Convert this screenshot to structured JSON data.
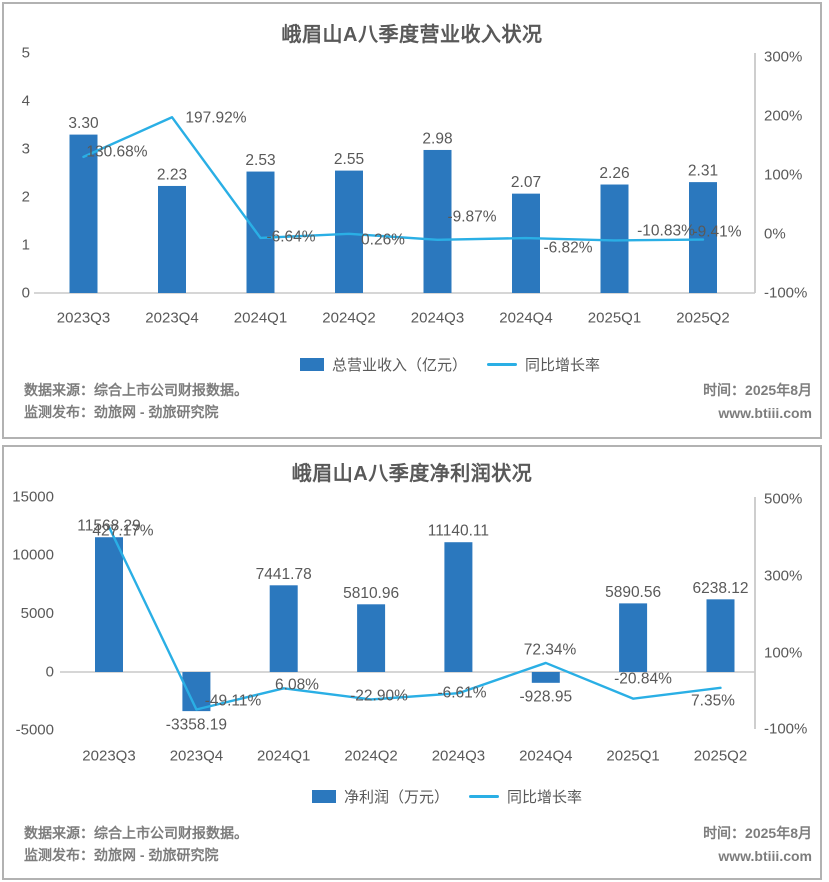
{
  "colors": {
    "bar": "#2b78be",
    "line": "#2aafe5",
    "label_gray": "#595959",
    "axis_gray": "#c9c9c9",
    "panel_border": "#b2b2b2",
    "footer_gray": "#7d7d7d"
  },
  "panels": [
    {
      "footer": {
        "left1": "数据来源：综合上市公司财报数据。",
        "left2": "监测发布：劲旅网 - 劲旅研究院",
        "right1": "时间：2025年8月",
        "right2": "www.btiii.com"
      }
    },
    {
      "footer": {
        "left1": "数据来源：综合上市公司财报数据。",
        "left2": "监测发布：劲旅网 - 劲旅研究院",
        "right1": "时间：2025年8月",
        "right2": "www.btiii.com"
      }
    }
  ],
  "chart_data": [
    {
      "type": "bar",
      "subtype": "bar-line-combo",
      "title": "峨眉山A八季度营业收入状况",
      "categories": [
        "2023Q3",
        "2023Q4",
        "2024Q1",
        "2024Q2",
        "2024Q3",
        "2024Q4",
        "2025Q1",
        "2025Q2"
      ],
      "series": [
        {
          "name": "总营业收入（亿元）",
          "type": "bar",
          "axis": "left",
          "values": [
            3.3,
            2.23,
            2.53,
            2.55,
            2.98,
            2.07,
            2.26,
            2.31
          ],
          "labels": [
            "3.30",
            "2.23",
            "2.53",
            "2.55",
            "2.98",
            "2.07",
            "2.26",
            "2.31"
          ]
        },
        {
          "name": "同比增长率",
          "type": "line",
          "axis": "right",
          "values": [
            130.68,
            197.92,
            -6.64,
            0.26,
            -9.87,
            -6.82,
            -10.83,
            -9.41
          ],
          "labels": [
            "130.68%",
            "197.92%",
            "-6.64%",
            "0.26%",
            "-9.87%",
            "-6.82%",
            "-10.83%",
            "-9.41%"
          ]
        }
      ],
      "left_axis": {
        "min": 0,
        "max": 5,
        "ticks": [
          "5",
          "4",
          "3",
          "2",
          "1",
          "0"
        ]
      },
      "right_axis": {
        "min": -100,
        "max": 300,
        "ticks": [
          "300%",
          "200%",
          "100%",
          "0%",
          "-100%"
        ]
      },
      "legend_position": "bottom",
      "grid": false
    },
    {
      "type": "bar",
      "subtype": "bar-line-combo",
      "title": "峨眉山A八季度净利润状况",
      "categories": [
        "2023Q3",
        "2023Q4",
        "2024Q1",
        "2024Q2",
        "2024Q3",
        "2024Q4",
        "2025Q1",
        "2025Q2"
      ],
      "series": [
        {
          "name": "净利润（万元）",
          "type": "bar",
          "axis": "left",
          "values": [
            11568.29,
            -3358.19,
            7441.78,
            5810.96,
            11140.11,
            -928.95,
            5890.56,
            6238.12
          ],
          "labels": [
            "11568.29",
            "-3358.19",
            "7441.78",
            "5810.96",
            "11140.11",
            "-928.95",
            "5890.56",
            "6238.12"
          ]
        },
        {
          "name": "同比增长率",
          "type": "line",
          "axis": "right",
          "values": [
            427.17,
            -49.11,
            6.08,
            -22.9,
            -6.61,
            72.34,
            -20.84,
            7.35
          ],
          "labels": [
            "427.17%",
            "-49.11%",
            "6.08%",
            "-22.90%",
            "-6.61%",
            "72.34%",
            "-20.84%",
            "7.35%"
          ]
        }
      ],
      "left_axis": {
        "min": -5000,
        "max": 15000,
        "ticks": [
          "15000",
          "10000",
          "5000",
          "0",
          "-5000"
        ]
      },
      "right_axis": {
        "min": -100,
        "max": 500,
        "ticks": [
          "500%",
          "300%",
          "100%",
          "-100%"
        ]
      },
      "legend_position": "bottom",
      "grid": false
    }
  ]
}
